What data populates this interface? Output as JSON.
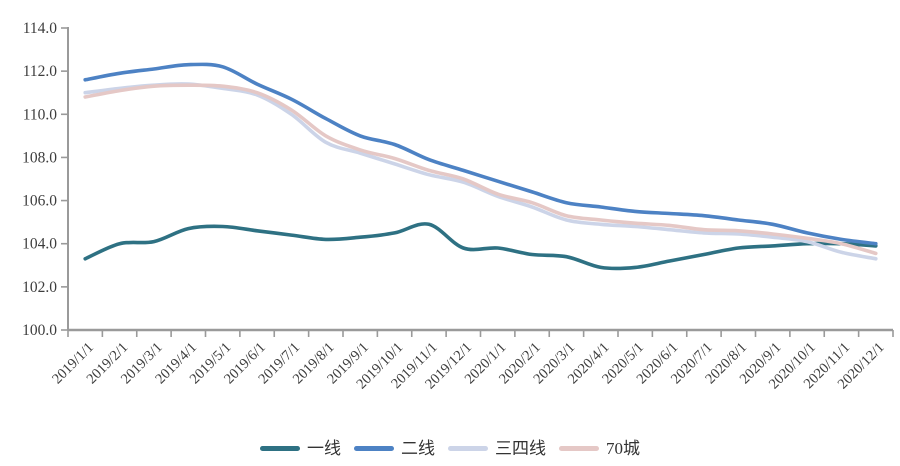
{
  "chart_data": {
    "type": "line",
    "title": "",
    "x_labels": [
      "2019/1/1",
      "2019/2/1",
      "2019/3/1",
      "2019/4/1",
      "2019/5/1",
      "2019/6/1",
      "2019/7/1",
      "2019/8/1",
      "2019/9/1",
      "2019/10/1",
      "2019/11/1",
      "2019/12/1",
      "2020/1/1",
      "2020/2/1",
      "2020/3/1",
      "2020/4/1",
      "2020/5/1",
      "2020/6/1",
      "2020/7/1",
      "2020/8/1",
      "2020/9/1",
      "2020/10/1",
      "2020/11/1",
      "2020/12/1"
    ],
    "y_axis": {
      "min": 100,
      "max": 114,
      "step": 2,
      "tick_labels": [
        "100.0",
        "102.0",
        "104.0",
        "106.0",
        "108.0",
        "110.0",
        "112.0",
        "114.0"
      ]
    },
    "series": [
      {
        "name": "一线",
        "color": "#2e7183",
        "values": [
          103.3,
          104.0,
          104.1,
          104.7,
          104.8,
          104.6,
          104.4,
          104.2,
          104.3,
          104.5,
          104.9,
          103.8,
          103.8,
          103.5,
          103.4,
          102.9,
          102.9,
          103.2,
          103.5,
          103.8,
          103.9,
          104.0,
          104.0,
          103.9
        ]
      },
      {
        "name": "二线",
        "color": "#4d82c4",
        "values": [
          111.6,
          111.9,
          112.1,
          112.3,
          112.2,
          111.4,
          110.7,
          109.8,
          109.0,
          108.6,
          107.9,
          107.4,
          106.9,
          106.4,
          105.9,
          105.7,
          105.5,
          105.4,
          105.3,
          105.1,
          104.9,
          104.5,
          104.2,
          104.0
        ]
      },
      {
        "name": "三四线",
        "color": "#ccd4e8",
        "values": [
          111.0,
          111.2,
          111.35,
          111.4,
          111.2,
          110.9,
          110.0,
          108.7,
          108.2,
          107.7,
          107.2,
          106.85,
          106.2,
          105.7,
          105.1,
          104.9,
          104.8,
          104.65,
          104.5,
          104.45,
          104.3,
          104.1,
          103.6,
          103.3
        ]
      },
      {
        "name": "70城",
        "color": "#e5c8c6",
        "values": [
          110.8,
          111.1,
          111.3,
          111.35,
          111.3,
          111.0,
          110.2,
          109.0,
          108.35,
          107.95,
          107.4,
          107.0,
          106.3,
          105.9,
          105.3,
          105.1,
          104.95,
          104.85,
          104.65,
          104.6,
          104.45,
          104.25,
          104.0,
          103.55
        ]
      }
    ],
    "legend": {
      "position": "bottom",
      "items": [
        "一线",
        "二线",
        "三四线",
        "70城"
      ]
    },
    "grid": false,
    "axis_color": "#9a9a9a",
    "label_color": "#3d3d3d",
    "background": "#ffffff"
  }
}
